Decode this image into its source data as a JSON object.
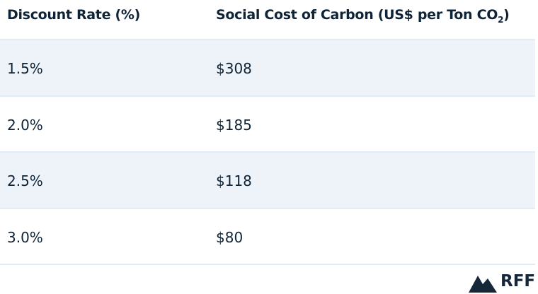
{
  "table": {
    "header": [
      "Discount Rate (%)",
      {
        "main": "Social Cost of Carbon (US$ per Ton CO",
        "sub": "2",
        "end": ")"
      }
    ],
    "rows": [
      [
        "1.5%",
        "$308"
      ],
      [
        "2.0%",
        "$185"
      ],
      [
        "2.5%",
        "$118"
      ],
      [
        "3.0%",
        "$80"
      ]
    ]
  },
  "footer": {
    "logo": "RFF"
  }
}
